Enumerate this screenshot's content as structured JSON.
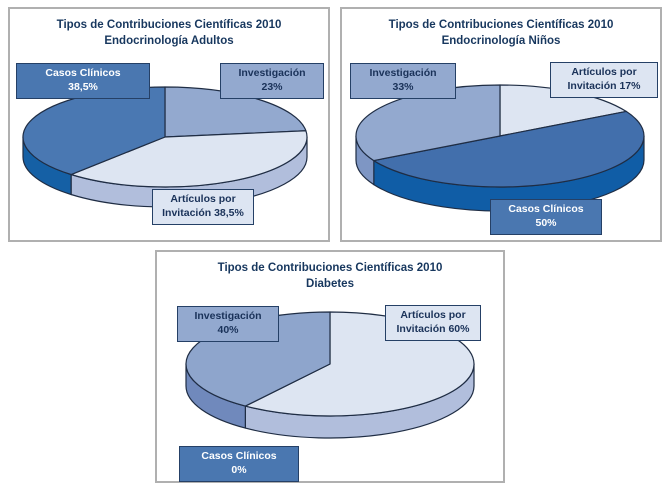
{
  "palette": {
    "page-bg": "#ffffff",
    "panel-border": "#b0b0b0",
    "title-color": "#17375e",
    "box-border": "#254066",
    "box-dark-bg": "#4a77b0",
    "box-dark-text": "#ffffff",
    "box-mid-bg": "#93a9cf",
    "box-light-bg": "#dde5f2",
    "box-text": "#1a3259",
    "pie-stroke": "#1f2d44"
  },
  "figure": {
    "panels": [
      {
        "title": "Tipos de Contribuciones Científicas 2010",
        "subtitle": "Endocrinología Adultos",
        "labels": [
          {
            "name": "casos-clinicos",
            "line1": "Casos Clínicos",
            "line2": "38,5%"
          },
          {
            "name": "investigacion",
            "line1": "Investigación",
            "line2": "23%"
          },
          {
            "name": "articulos-por-invitacion",
            "line1": "Artículos por",
            "line2": "Invitación 38,5%"
          }
        ]
      },
      {
        "title": "Tipos de Contribuciones Científicas 2010",
        "subtitle": "Endocrinología Niños",
        "labels": [
          {
            "name": "investigacion",
            "line1": "Investigación",
            "line2": "33%"
          },
          {
            "name": "articulos-por-invitacion",
            "line1": "Artículos por",
            "line2": "Invitación 17%"
          },
          {
            "name": "casos-clinicos",
            "line1": "Casos Clínicos",
            "line2": "50%"
          }
        ]
      },
      {
        "title": "Tipos de Contribuciones Científicas 2010",
        "subtitle": "Diabetes",
        "labels": [
          {
            "name": "investigacion",
            "line1": "Investigación",
            "line2": "40%"
          },
          {
            "name": "articulos-por-invitacion",
            "line1": "Artículos por",
            "line2": "Invitación 60%"
          },
          {
            "name": "casos-clinicos",
            "line1": "Casos Clínicos",
            "line2": "0%"
          }
        ]
      }
    ]
  },
  "chart_data": [
    {
      "type": "pie",
      "style": "3d",
      "title": "Tipos de Contribuciones Científicas 2010",
      "subtitle": "Endocrinología Adultos",
      "unit": "%",
      "clockwise_from_top": true,
      "slices": [
        {
          "label": "Investigación",
          "value": 23,
          "display": "23%",
          "color": "#93a9cf",
          "side_color": "#7e96c4"
        },
        {
          "label": "Artículos por Invitación",
          "value": 38.5,
          "display": "38,5%",
          "color": "#dde5f2",
          "side_color": "#b1bedc"
        },
        {
          "label": "Casos Clínicos",
          "value": 38.5,
          "display": "38,5%",
          "color": "#4a78b2",
          "side_color": "#1560a5"
        }
      ]
    },
    {
      "type": "pie",
      "style": "3d",
      "title": "Tipos de Contribuciones Científicas 2010",
      "subtitle": "Endocrinología Niños",
      "unit": "%",
      "clockwise_from_top": true,
      "slices": [
        {
          "label": "Artículos por Invitación",
          "value": 17,
          "display": "17%",
          "color": "#dde5f2",
          "side_color": "#b1bedc"
        },
        {
          "label": "Casos Clínicos",
          "value": 50,
          "display": "50%",
          "color": "#426fac",
          "side_color": "#105da6"
        },
        {
          "label": "Investigación",
          "value": 33,
          "display": "33%",
          "color": "#93a9cf",
          "side_color": "#7e96c4"
        }
      ]
    },
    {
      "type": "pie",
      "style": "3d",
      "title": "Tipos de Contribuciones Científicas 2010",
      "subtitle": "Diabetes",
      "unit": "%",
      "clockwise_from_top": true,
      "slices": [
        {
          "label": "Artículos por Invitación",
          "value": 60,
          "display": "60%",
          "color": "#dde5f2",
          "side_color": "#b1bedc"
        },
        {
          "label": "Investigación",
          "value": 40,
          "display": "40%",
          "color": "#8ea5cc",
          "side_color": "#7089bc"
        },
        {
          "label": "Casos Clínicos",
          "value": 0,
          "display": "0%",
          "color": "#4a78b2",
          "side_color": "#1560a5"
        }
      ]
    }
  ]
}
